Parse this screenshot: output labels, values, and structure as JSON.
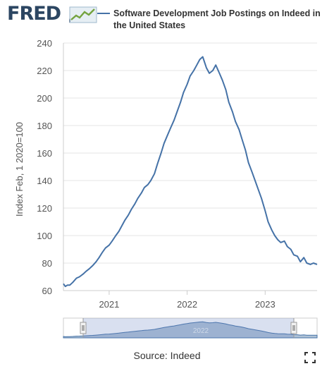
{
  "header": {
    "logo_text": "FRED",
    "logo_mark": "®",
    "legend_label": "Software Development Job Postings on Indeed in the United States",
    "series_color": "#4572a7"
  },
  "footer": {
    "source": "Source: Indeed",
    "fullscreen_icon": "fullscreen-icon"
  },
  "navigator": {
    "year_label": "2022"
  },
  "chart_data": {
    "type": "line",
    "title": "",
    "xlabel": "",
    "ylabel": "Index Feb, 1 2020=100",
    "ylim": [
      60,
      240
    ],
    "yticks": [
      60,
      80,
      100,
      120,
      140,
      160,
      180,
      200,
      220,
      240
    ],
    "xlim": [
      "2020-06-01",
      "2023-09-01"
    ],
    "xticks": [
      "2021",
      "2022",
      "2023"
    ],
    "grid": "horizontal",
    "series": [
      {
        "name": "Software Development Job Postings on Indeed in the United States",
        "color": "#4572a7",
        "x": [
          "2020-06-01",
          "2020-06-10",
          "2020-06-20",
          "2020-07-01",
          "2020-07-15",
          "2020-08-01",
          "2020-08-15",
          "2020-09-01",
          "2020-09-15",
          "2020-10-01",
          "2020-10-15",
          "2020-11-01",
          "2020-11-15",
          "2020-12-01",
          "2020-12-15",
          "2021-01-01",
          "2021-01-15",
          "2021-02-01",
          "2021-02-15",
          "2021-03-01",
          "2021-03-15",
          "2021-04-01",
          "2021-04-15",
          "2021-05-01",
          "2021-05-15",
          "2021-06-01",
          "2021-06-15",
          "2021-07-01",
          "2021-07-15",
          "2021-08-01",
          "2021-08-15",
          "2021-09-01",
          "2021-09-15",
          "2021-10-01",
          "2021-10-15",
          "2021-11-01",
          "2021-11-15",
          "2021-12-01",
          "2021-12-15",
          "2022-01-01",
          "2022-01-15",
          "2022-02-01",
          "2022-02-15",
          "2022-03-01",
          "2022-03-15",
          "2022-04-01",
          "2022-04-15",
          "2022-05-01",
          "2022-05-15",
          "2022-06-01",
          "2022-06-15",
          "2022-07-01",
          "2022-07-15",
          "2022-08-01",
          "2022-08-15",
          "2022-09-01",
          "2022-09-15",
          "2022-10-01",
          "2022-10-15",
          "2022-11-01",
          "2022-11-15",
          "2022-12-01",
          "2022-12-15",
          "2023-01-01",
          "2023-01-15",
          "2023-02-01",
          "2023-02-15",
          "2023-03-01",
          "2023-03-15",
          "2023-04-01",
          "2023-04-15",
          "2023-05-01",
          "2023-05-15",
          "2023-06-01",
          "2023-06-15",
          "2023-07-01",
          "2023-07-15",
          "2023-08-01",
          "2023-08-15",
          "2023-09-01"
        ],
        "values": [
          65,
          63,
          64,
          64,
          66,
          69,
          70,
          72,
          74,
          76,
          78,
          81,
          84,
          88,
          91,
          93,
          96,
          100,
          103,
          107,
          111,
          115,
          119,
          123,
          127,
          131,
          135,
          137,
          140,
          145,
          152,
          160,
          167,
          173,
          178,
          184,
          190,
          197,
          204,
          210,
          216,
          220,
          224,
          228,
          230,
          222,
          218,
          220,
          224,
          218,
          213,
          206,
          197,
          190,
          183,
          177,
          170,
          162,
          153,
          146,
          140,
          133,
          127,
          118,
          110,
          104,
          100,
          97,
          95,
          96,
          92,
          90,
          86,
          85,
          81,
          84,
          80,
          79,
          80,
          79
        ]
      }
    ]
  }
}
